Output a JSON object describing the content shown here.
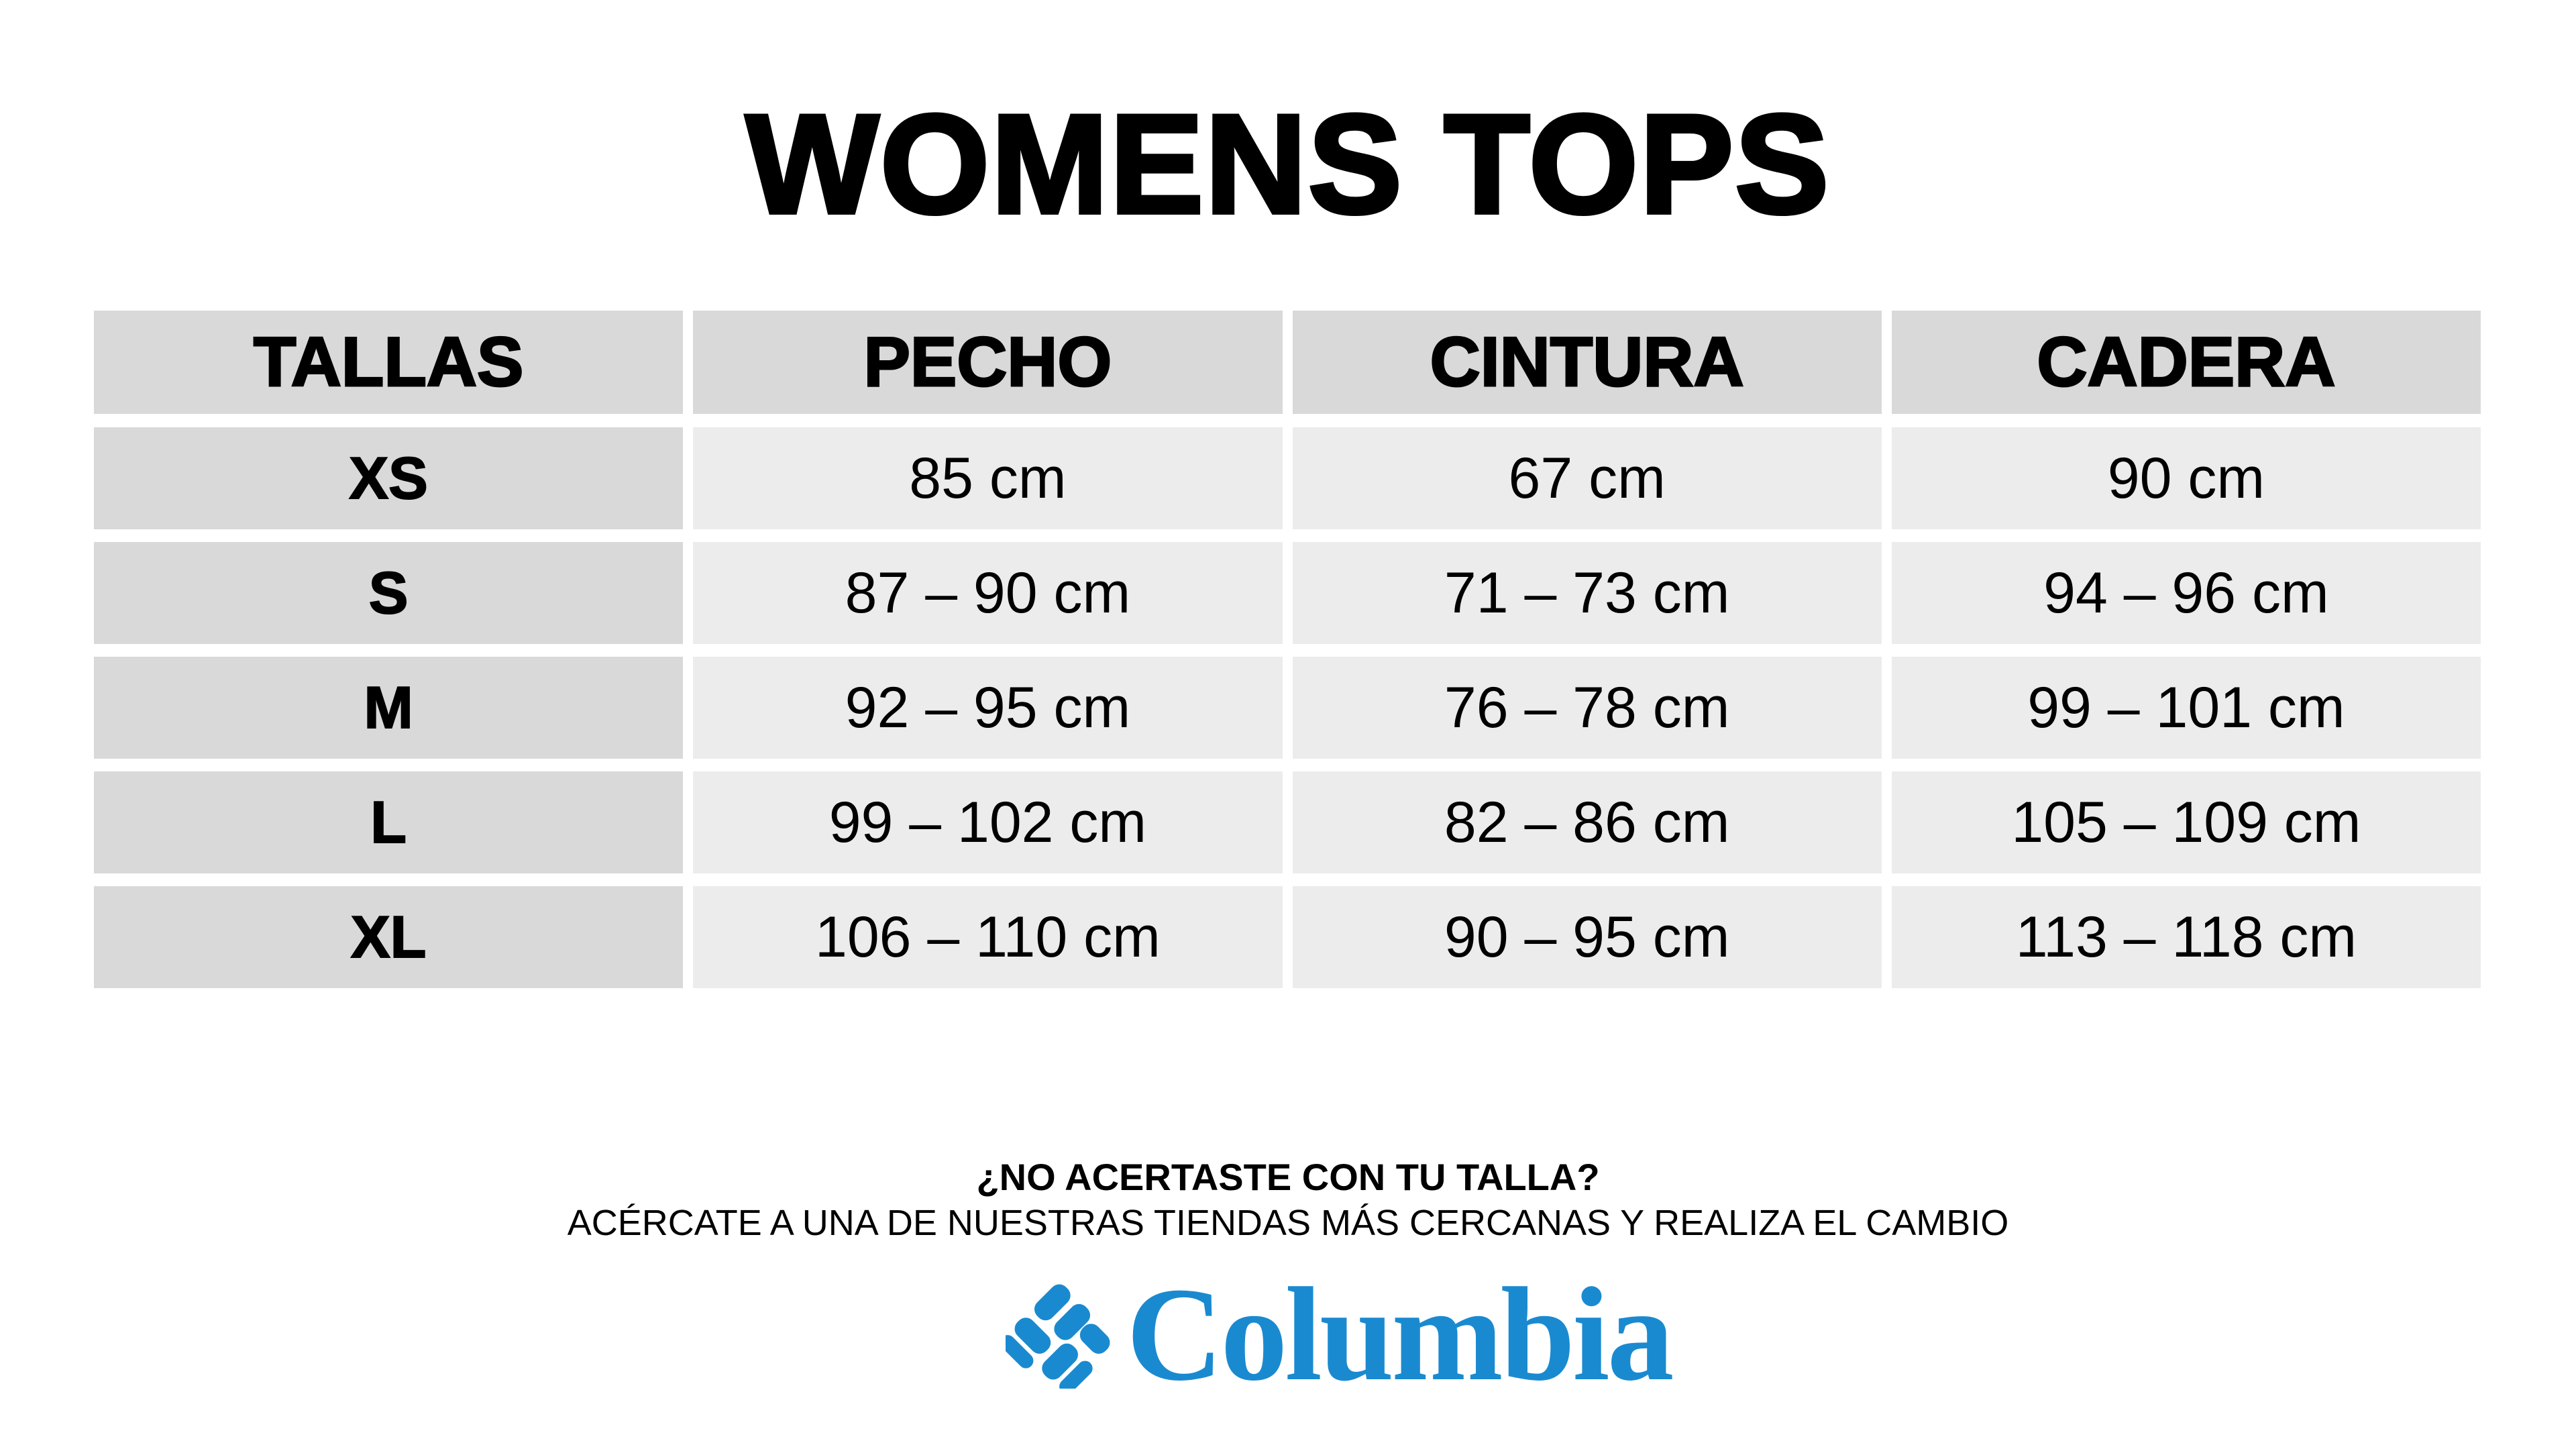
{
  "title": "WOMENS TOPS",
  "table": {
    "headers": [
      "TALLAS",
      "PECHO",
      "CINTURA",
      "CADERA"
    ],
    "rows": [
      [
        "XS",
        "85 cm",
        "67 cm",
        "90 cm"
      ],
      [
        "S",
        "87 – 90 cm",
        "71 – 73 cm",
        "94 – 96 cm"
      ],
      [
        "M",
        "92 – 95 cm",
        "76 – 78 cm",
        "99 – 101 cm"
      ],
      [
        "L",
        "99 – 102 cm",
        "82 – 86 cm",
        "105 – 109 cm"
      ],
      [
        "XL",
        "106 – 110 cm",
        "90 – 95 cm",
        "113 – 118 cm"
      ]
    ]
  },
  "footer": {
    "question": "¿NO ACERTASTE CON TU TALLA?",
    "message": "ACÉRCATE A UNA DE NUESTRAS TIENDAS MÁS CERCANAS Y REALIZA EL CAMBIO"
  },
  "logo": {
    "text": "Columbia",
    "icon": "columbia-diamond-icon",
    "color": "#1a8ad0"
  },
  "colors": {
    "header_bg": "#d9d9d9",
    "cell_bg": "#ececec"
  }
}
